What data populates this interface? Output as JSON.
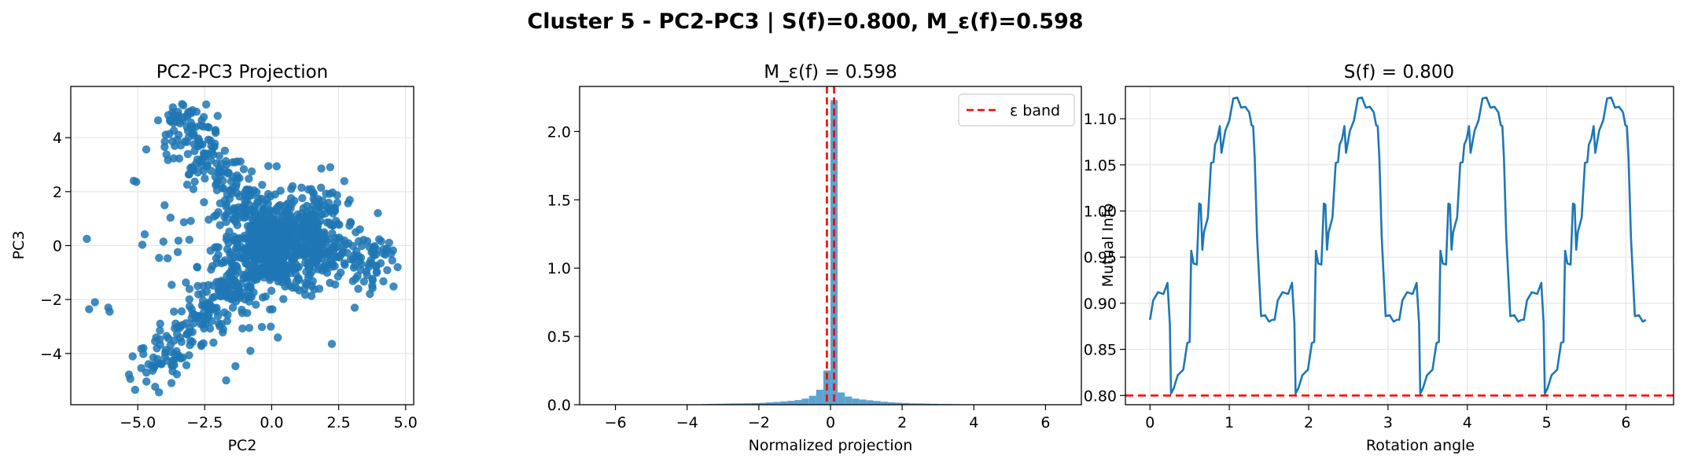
{
  "figure": {
    "suptitle": "Cluster 5 - PC2-PC3 | S(f)=0.800, M_ε(f)=0.598"
  },
  "colors": {
    "series": "#1f77b4",
    "hist": "#5ba3d0",
    "reference": "#ff0000",
    "grid": "#e6e6e6"
  },
  "chart_data": [
    {
      "type": "scatter",
      "title": "PC2-PC3 Projection",
      "xlabel": "PC2",
      "ylabel": "PC3",
      "xlim": [
        -7.5,
        5.3
      ],
      "ylim": [
        -5.9,
        5.9
      ],
      "xticks": [
        -5.0,
        -2.5,
        0.0,
        2.5,
        5.0
      ],
      "xtick_labels": [
        "−5.0",
        "−2.5",
        "0.0",
        "2.5",
        "5.0"
      ],
      "yticks": [
        -4,
        -2,
        0,
        2,
        4
      ],
      "ytick_labels": [
        "−4",
        "−2",
        "0",
        "2",
        "4"
      ],
      "grid": true,
      "note": "Approximate point cloud: dense X-shaped cluster centered near (0, 0), arms toward upper-left (-3.5, 5) and lower-left (-5, -5)",
      "outliers": [
        [
          -6.9,
          0.25
        ],
        [
          -6.6,
          -2.1
        ],
        [
          -6.1,
          -2.3
        ],
        [
          -6.05,
          -2.45
        ],
        [
          -5.1,
          -5.35
        ],
        [
          -4.6,
          -4.4
        ],
        [
          4.7,
          -0.8
        ],
        [
          4.5,
          -0.55
        ],
        [
          -3.3,
          5.2
        ],
        [
          -1.7,
          -5.0
        ],
        [
          -5.15,
          2.4
        ],
        [
          -3.0,
          4.95
        ]
      ]
    },
    {
      "type": "bar",
      "title": "M_ε(f) = 0.598",
      "xlabel": "Normalized projection",
      "ylabel": "",
      "xlim": [
        -7.0,
        7.0
      ],
      "ylim": [
        0,
        2.33
      ],
      "xticks": [
        -6,
        -4,
        -2,
        0,
        2,
        4,
        6
      ],
      "xtick_labels": [
        "−6",
        "−4",
        "−2",
        "0",
        "2",
        "4",
        "6"
      ],
      "yticks": [
        0.0,
        0.5,
        1.0,
        1.5,
        2.0
      ],
      "ytick_labels": [
        "0.0",
        "0.5",
        "1.0",
        "1.5",
        "2.0"
      ],
      "grid": false,
      "bin_width": 0.2,
      "bins_left": [
        -4.0,
        -3.8,
        -3.6,
        -3.4,
        -3.2,
        -3.0,
        -2.8,
        -2.6,
        -2.4,
        -2.2,
        -2.0,
        -1.8,
        -1.6,
        -1.4,
        -1.2,
        -1.0,
        -0.8,
        -0.6,
        -0.4,
        -0.2,
        0.0,
        0.2,
        0.4,
        0.6,
        0.8,
        1.0,
        1.2,
        1.4,
        1.6,
        1.8,
        2.0,
        2.2,
        2.4,
        2.6,
        2.8,
        3.0,
        3.2,
        3.4,
        3.6,
        3.8,
        4.0
      ],
      "density": [
        0.002,
        0.003,
        0.004,
        0.006,
        0.007,
        0.008,
        0.009,
        0.01,
        0.011,
        0.012,
        0.014,
        0.017,
        0.02,
        0.024,
        0.028,
        0.034,
        0.045,
        0.065,
        0.11,
        0.25,
        2.23,
        0.09,
        0.06,
        0.045,
        0.038,
        0.032,
        0.027,
        0.022,
        0.018,
        0.015,
        0.012,
        0.01,
        0.009,
        0.008,
        0.007,
        0.006,
        0.005,
        0.004,
        0.003,
        0.003,
        0.002
      ],
      "epsilon_band": [
        -0.1,
        0.1
      ],
      "legend": {
        "label": "ε band",
        "position": "upper-right"
      }
    },
    {
      "type": "line",
      "title": "S(f) = 0.800",
      "xlabel": "Rotation angle",
      "ylabel": "Mutual Info",
      "xlim": [
        -0.31,
        6.6
      ],
      "ylim": [
        0.79,
        1.135
      ],
      "xticks": [
        0,
        1,
        2,
        3,
        4,
        5,
        6
      ],
      "xtick_labels": [
        "0",
        "1",
        "2",
        "3",
        "4",
        "5",
        "6"
      ],
      "yticks": [
        0.8,
        0.85,
        0.9,
        0.95,
        1.0,
        1.05,
        1.1
      ],
      "ytick_labels": [
        "0.80",
        "0.85",
        "0.90",
        "0.95",
        "1.00",
        "1.05",
        "1.10"
      ],
      "grid": true,
      "reference_line": 0.8,
      "period": 1.5708,
      "cycle_x": [
        0.0,
        0.04,
        0.1,
        0.17,
        0.22,
        0.25,
        0.265,
        0.3,
        0.35,
        0.42,
        0.47,
        0.5,
        0.52,
        0.55,
        0.59,
        0.62,
        0.64,
        0.66,
        0.68,
        0.73,
        0.77,
        0.8,
        0.82,
        0.85,
        0.88,
        0.9,
        0.95,
        1.0,
        1.05,
        1.1,
        1.15,
        1.2,
        1.25,
        1.28,
        1.3,
        1.32,
        1.35,
        1.4,
        1.45,
        1.5,
        1.54
      ],
      "cycle_y": [
        0.88,
        0.905,
        0.91,
        0.912,
        0.92,
        0.88,
        0.8,
        0.81,
        0.82,
        0.83,
        0.855,
        0.86,
        0.955,
        0.945,
        0.94,
        1.01,
        1.005,
        0.96,
        0.975,
        0.995,
        1.05,
        1.055,
        1.07,
        1.08,
        1.09,
        1.065,
        1.085,
        1.1,
        1.12,
        1.125,
        1.11,
        1.115,
        1.105,
        1.095,
        1.09,
        1.06,
        0.97,
        0.888,
        0.885,
        0.882,
        0.88
      ]
    }
  ]
}
